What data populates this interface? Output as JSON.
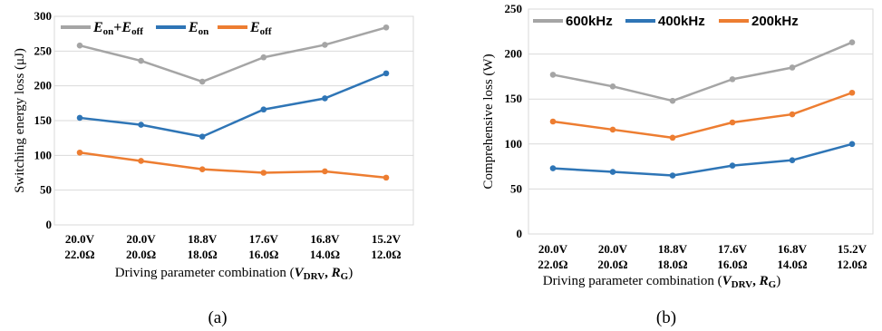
{
  "chart_data": [
    {
      "type": "line",
      "panel_label": "(a)",
      "categories": [
        [
          "20.0V",
          "22.0Ω"
        ],
        [
          "20.0V",
          "20.0Ω"
        ],
        [
          "18.8V",
          "18.0Ω"
        ],
        [
          "17.6V",
          "16.0Ω"
        ],
        [
          "16.8V",
          "14.0Ω"
        ],
        [
          "15.2V",
          "12.0Ω"
        ]
      ],
      "ylabel": "Switching energy loss (μJ)",
      "xlabel": "Driving parameter combination",
      "ylim": [
        0,
        300
      ],
      "yticks": [
        0,
        50,
        100,
        150,
        200,
        250,
        300
      ],
      "grid": true,
      "legend_position": "top",
      "series": [
        {
          "name": "Eon+Eoff",
          "color": "#a5a5a5",
          "values": [
            258,
            236,
            206,
            241,
            259,
            284
          ]
        },
        {
          "name": "Eon",
          "color": "#2e75b6",
          "values": [
            154,
            144,
            127,
            166,
            182,
            218
          ]
        },
        {
          "name": "Eoff",
          "color": "#ed7d31",
          "values": [
            104,
            92,
            80,
            75,
            77,
            68
          ]
        }
      ]
    },
    {
      "type": "line",
      "panel_label": "(b)",
      "categories": [
        [
          "20.0V",
          "22.0Ω"
        ],
        [
          "20.0V",
          "20.0Ω"
        ],
        [
          "18.8V",
          "18.0Ω"
        ],
        [
          "17.6V",
          "16.0Ω"
        ],
        [
          "16.8V",
          "14.0Ω"
        ],
        [
          "15.2V",
          "12.0Ω"
        ]
      ],
      "ylabel": "Comprehensive loss (W)",
      "xlabel": "Driving parameter combination",
      "ylim": [
        0,
        250
      ],
      "yticks": [
        0,
        50,
        100,
        150,
        200,
        250
      ],
      "grid": true,
      "legend_position": "top",
      "series": [
        {
          "name": "600kHz",
          "color": "#a5a5a5",
          "values": [
            177,
            164,
            148,
            172,
            185,
            213
          ]
        },
        {
          "name": "400kHz",
          "color": "#2e75b6",
          "values": [
            73,
            69,
            65,
            76,
            82,
            100
          ]
        },
        {
          "name": "200kHz",
          "color": "#ed7d31",
          "values": [
            125,
            116,
            107,
            124,
            133,
            157
          ]
        }
      ]
    }
  ]
}
